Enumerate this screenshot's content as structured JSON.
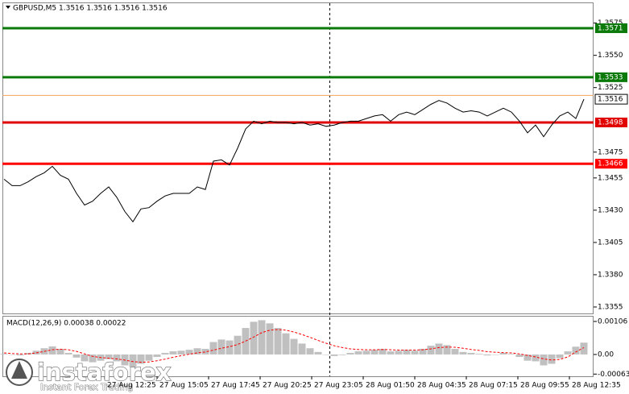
{
  "chart_data": [
    {
      "type": "line",
      "title": "GBPUSD,M5  1.3516 1.3516 1.3516 1.3516",
      "color": "#000000",
      "x": [
        0,
        1,
        2,
        3,
        4,
        5,
        6,
        7,
        8,
        9,
        10,
        11,
        12,
        13,
        14,
        15,
        16,
        17,
        18,
        19,
        20,
        21,
        22,
        23,
        24,
        25,
        26,
        27,
        28,
        29,
        30,
        31,
        32,
        33,
        34,
        35,
        36,
        37,
        38,
        39,
        40,
        41,
        42,
        43,
        44,
        45,
        46,
        47,
        48,
        49,
        50,
        51,
        52,
        53,
        54,
        55,
        56,
        57,
        58,
        59,
        60,
        61,
        62,
        63,
        64,
        65,
        66,
        67,
        68,
        69,
        70,
        71,
        72
      ],
      "values": [
        1.3454,
        1.3449,
        1.3449,
        1.3452,
        1.3456,
        1.3459,
        1.3464,
        1.3457,
        1.3454,
        1.3443,
        1.3434,
        1.3437,
        1.3443,
        1.3448,
        1.344,
        1.3429,
        1.3421,
        1.3431,
        1.3432,
        1.3437,
        1.3441,
        1.3443,
        1.3443,
        1.3443,
        1.3448,
        1.3446,
        1.3468,
        1.3469,
        1.3465,
        1.3478,
        1.3493,
        1.3499,
        1.3497,
        1.3499,
        1.3498,
        1.3498,
        1.3497,
        1.3498,
        1.3496,
        1.3497,
        1.3495,
        1.3496,
        1.3498,
        1.3499,
        1.3499,
        1.3501,
        1.3503,
        1.3504,
        1.3499,
        1.3504,
        1.3506,
        1.3504,
        1.3508,
        1.3512,
        1.3515,
        1.3513,
        1.3509,
        1.3506,
        1.3507,
        1.3506,
        1.3503,
        1.3506,
        1.3509,
        1.3506,
        1.3499,
        1.349,
        1.3496,
        1.3487,
        1.3496,
        1.3503,
        1.3506,
        1.3501,
        1.3516
      ],
      "xlim": [
        -0.2,
        73.2
      ],
      "ylim": [
        1.335,
        1.3591
      ],
      "yticks": [
        1.3575,
        {
          "value": 1.355,
          "label": "1.3550"
        },
        1.3525,
        1.3475,
        1.3455,
        {
          "value": 1.343,
          "label": "1.3430"
        },
        1.3405,
        {
          "value": 1.338,
          "label": "1.3380"
        },
        1.3355
      ],
      "xticks": [
        {
          "value": 12.5,
          "label": "27 Aug 12:25"
        },
        {
          "value": 19,
          "label": "27 Aug 15:05"
        },
        {
          "value": 25.4,
          "label": "27 Aug 17:45"
        },
        {
          "value": 31.8,
          "label": "27 Aug 20:25"
        },
        {
          "value": 38.2,
          "label": "27 Aug 23:05"
        },
        {
          "value": 44.6,
          "label": "28 Aug 01:50"
        },
        {
          "value": 51,
          "label": "28 Aug 04:35"
        },
        {
          "value": 57.4,
          "label": "28 Aug 07:15"
        },
        {
          "value": 63.8,
          "label": "28 Aug 09:55"
        },
        {
          "value": 70.2,
          "label": "28 Aug 12:35"
        }
      ],
      "levels": [
        {
          "value": 1.3571,
          "color": "#0b7a0b"
        },
        {
          "value": 1.3533,
          "color": "#0b7a0b"
        },
        {
          "value": 1.3498,
          "color": "#e00000"
        },
        {
          "value": 1.3466,
          "color": "#ff0000"
        }
      ],
      "ask_line": 1.3519,
      "ask_color": "#f4a460",
      "last_price": 1.3516
    },
    {
      "type": "macd",
      "title": "MACD(12,26,9) 0.00038 0.00022",
      "x": [
        0,
        1,
        2,
        3,
        4,
        5,
        6,
        7,
        8,
        9,
        10,
        11,
        12,
        13,
        14,
        15,
        16,
        17,
        18,
        19,
        20,
        21,
        22,
        23,
        24,
        25,
        26,
        27,
        28,
        29,
        30,
        31,
        32,
        33,
        34,
        35,
        36,
        37,
        38,
        39,
        40,
        41,
        42,
        43,
        44,
        45,
        46,
        47,
        48,
        49,
        50,
        51,
        52,
        53,
        54,
        55,
        56,
        57,
        58,
        59,
        60,
        61,
        62,
        63,
        64,
        65,
        66,
        67,
        68,
        69,
        70,
        71,
        72
      ],
      "series": [
        {
          "type": "bar",
          "color": "#c0c0c0",
          "values": [
            2e-05,
            0,
            -3e-05,
            5e-05,
            0.00012,
            0.0002,
            0.00026,
            0.00018,
            5e-05,
            -0.0001,
            -0.00022,
            -0.00025,
            -0.0002,
            -0.00015,
            -0.00022,
            -0.00035,
            -0.0004,
            -0.0003,
            -0.0002,
            -8e-05,
            5e-05,
            0.0001,
            0.00012,
            0.00015,
            0.0002,
            0.00018,
            0.0004,
            0.00048,
            0.00045,
            0.0006,
            0.00085,
            0.00105,
            0.0011,
            0.001,
            0.00085,
            0.00068,
            0.0005,
            0.00035,
            0.0002,
            8e-05,
            0,
            -5e-05,
            -2e-05,
            5e-05,
            0.0001,
            0.00012,
            0.00015,
            0.00018,
            0.0001,
            0.00012,
            0.00015,
            0.00012,
            0.00018,
            0.00028,
            0.00035,
            0.0003,
            0.00018,
            8e-05,
            5e-05,
            2e-05,
            -3e-05,
            0,
            5e-05,
            2e-05,
            -8e-05,
            -0.0002,
            -0.00022,
            -0.00035,
            -0.0003,
            -0.00012,
            0.0001,
            0.00025,
            0.00038
          ]
        },
        {
          "type": "line",
          "color": "#ff0000",
          "values": [
            5e-05,
            3e-05,
            2e-05,
            2e-05,
            5e-05,
            0.0001,
            0.00015,
            0.00017,
            0.00015,
            0.0001,
            2e-05,
            -6e-05,
            -0.0001,
            -0.00012,
            -0.00014,
            -0.00018,
            -0.00023,
            -0.00025,
            -0.00024,
            -0.0002,
            -0.00015,
            -9e-05,
            -4e-05,
            1e-05,
            5e-05,
            8e-05,
            0.00014,
            0.0002,
            0.00025,
            0.00032,
            0.00043,
            0.00056,
            0.0007,
            0.00078,
            0.0008,
            0.00078,
            0.00072,
            0.00064,
            0.00055,
            0.00045,
            0.00036,
            0.00028,
            0.00022,
            0.00018,
            0.00016,
            0.00015,
            0.00015,
            0.00016,
            0.00015,
            0.00014,
            0.00014,
            0.00014,
            0.00015,
            0.00018,
            0.00022,
            0.00024,
            0.00023,
            0.0002,
            0.00016,
            0.00013,
            9e-05,
            7e-05,
            6e-05,
            5e-05,
            2e-05,
            -3e-05,
            -8e-05,
            -0.00014,
            -0.00018,
            -0.00016,
            -8e-05,
            8e-05,
            0.00022
          ]
        }
      ],
      "xlim": [
        -0.2,
        73.2
      ],
      "ylim": [
        -0.0007,
        0.00124
      ],
      "yticks": [
        0.00106,
        {
          "value": 0,
          "label": "0.00"
        },
        -0.00063
      ]
    }
  ],
  "watermark": {
    "name": "instaforex",
    "tagline": "Instant Forex Trading"
  }
}
